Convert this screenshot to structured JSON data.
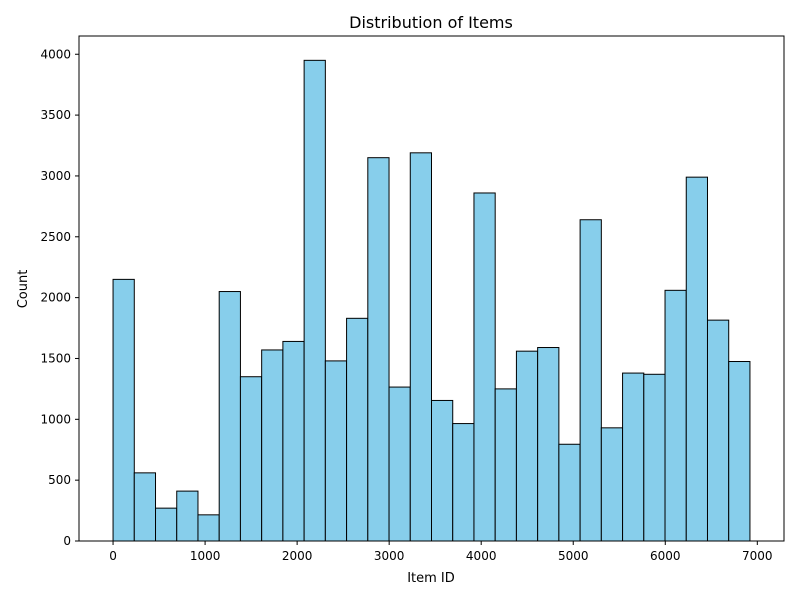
{
  "chart_data": {
    "type": "bar",
    "title": "Distribution of Items",
    "xlabel": "Item ID",
    "ylabel": "Count",
    "xlim": [
      -370,
      7290
    ],
    "ylim": [
      0,
      4150
    ],
    "bin_edges": [
      0,
      230.67,
      461.33,
      692,
      922.67,
      1153.33,
      1384,
      1614.67,
      1845.33,
      2076,
      2306.67,
      2537.33,
      2768,
      2998.67,
      3229.33,
      3460,
      3690.67,
      3921.33,
      4152,
      4382.67,
      4613.33,
      4844,
      5074.67,
      5305.33,
      5536,
      5766.67,
      5997.33,
      6228,
      6458.67,
      6689.33,
      6920
    ],
    "values": [
      2150,
      560,
      270,
      410,
      215,
      2050,
      1350,
      1570,
      1640,
      3950,
      1480,
      1830,
      3150,
      1265,
      3190,
      1155,
      965,
      2860,
      1250,
      1560,
      1590,
      795,
      2640,
      930,
      1380,
      1370,
      2060,
      2990,
      1815,
      1475
    ],
    "x_ticks": [
      0,
      1000,
      2000,
      3000,
      4000,
      5000,
      6000,
      7000
    ],
    "x_tick_labels": [
      "0",
      "1000",
      "2000",
      "3000",
      "4000",
      "5000",
      "6000",
      "7000"
    ],
    "y_ticks": [
      0,
      500,
      1000,
      1500,
      2000,
      2500,
      3000,
      3500,
      4000
    ],
    "y_tick_labels": [
      "0",
      "500",
      "1000",
      "1500",
      "2000",
      "2500",
      "3000",
      "3500",
      "4000"
    ],
    "colors": {
      "bar_fill": "#87CEEB",
      "bar_edge": "#000000"
    },
    "grid": false,
    "legend": "none"
  }
}
